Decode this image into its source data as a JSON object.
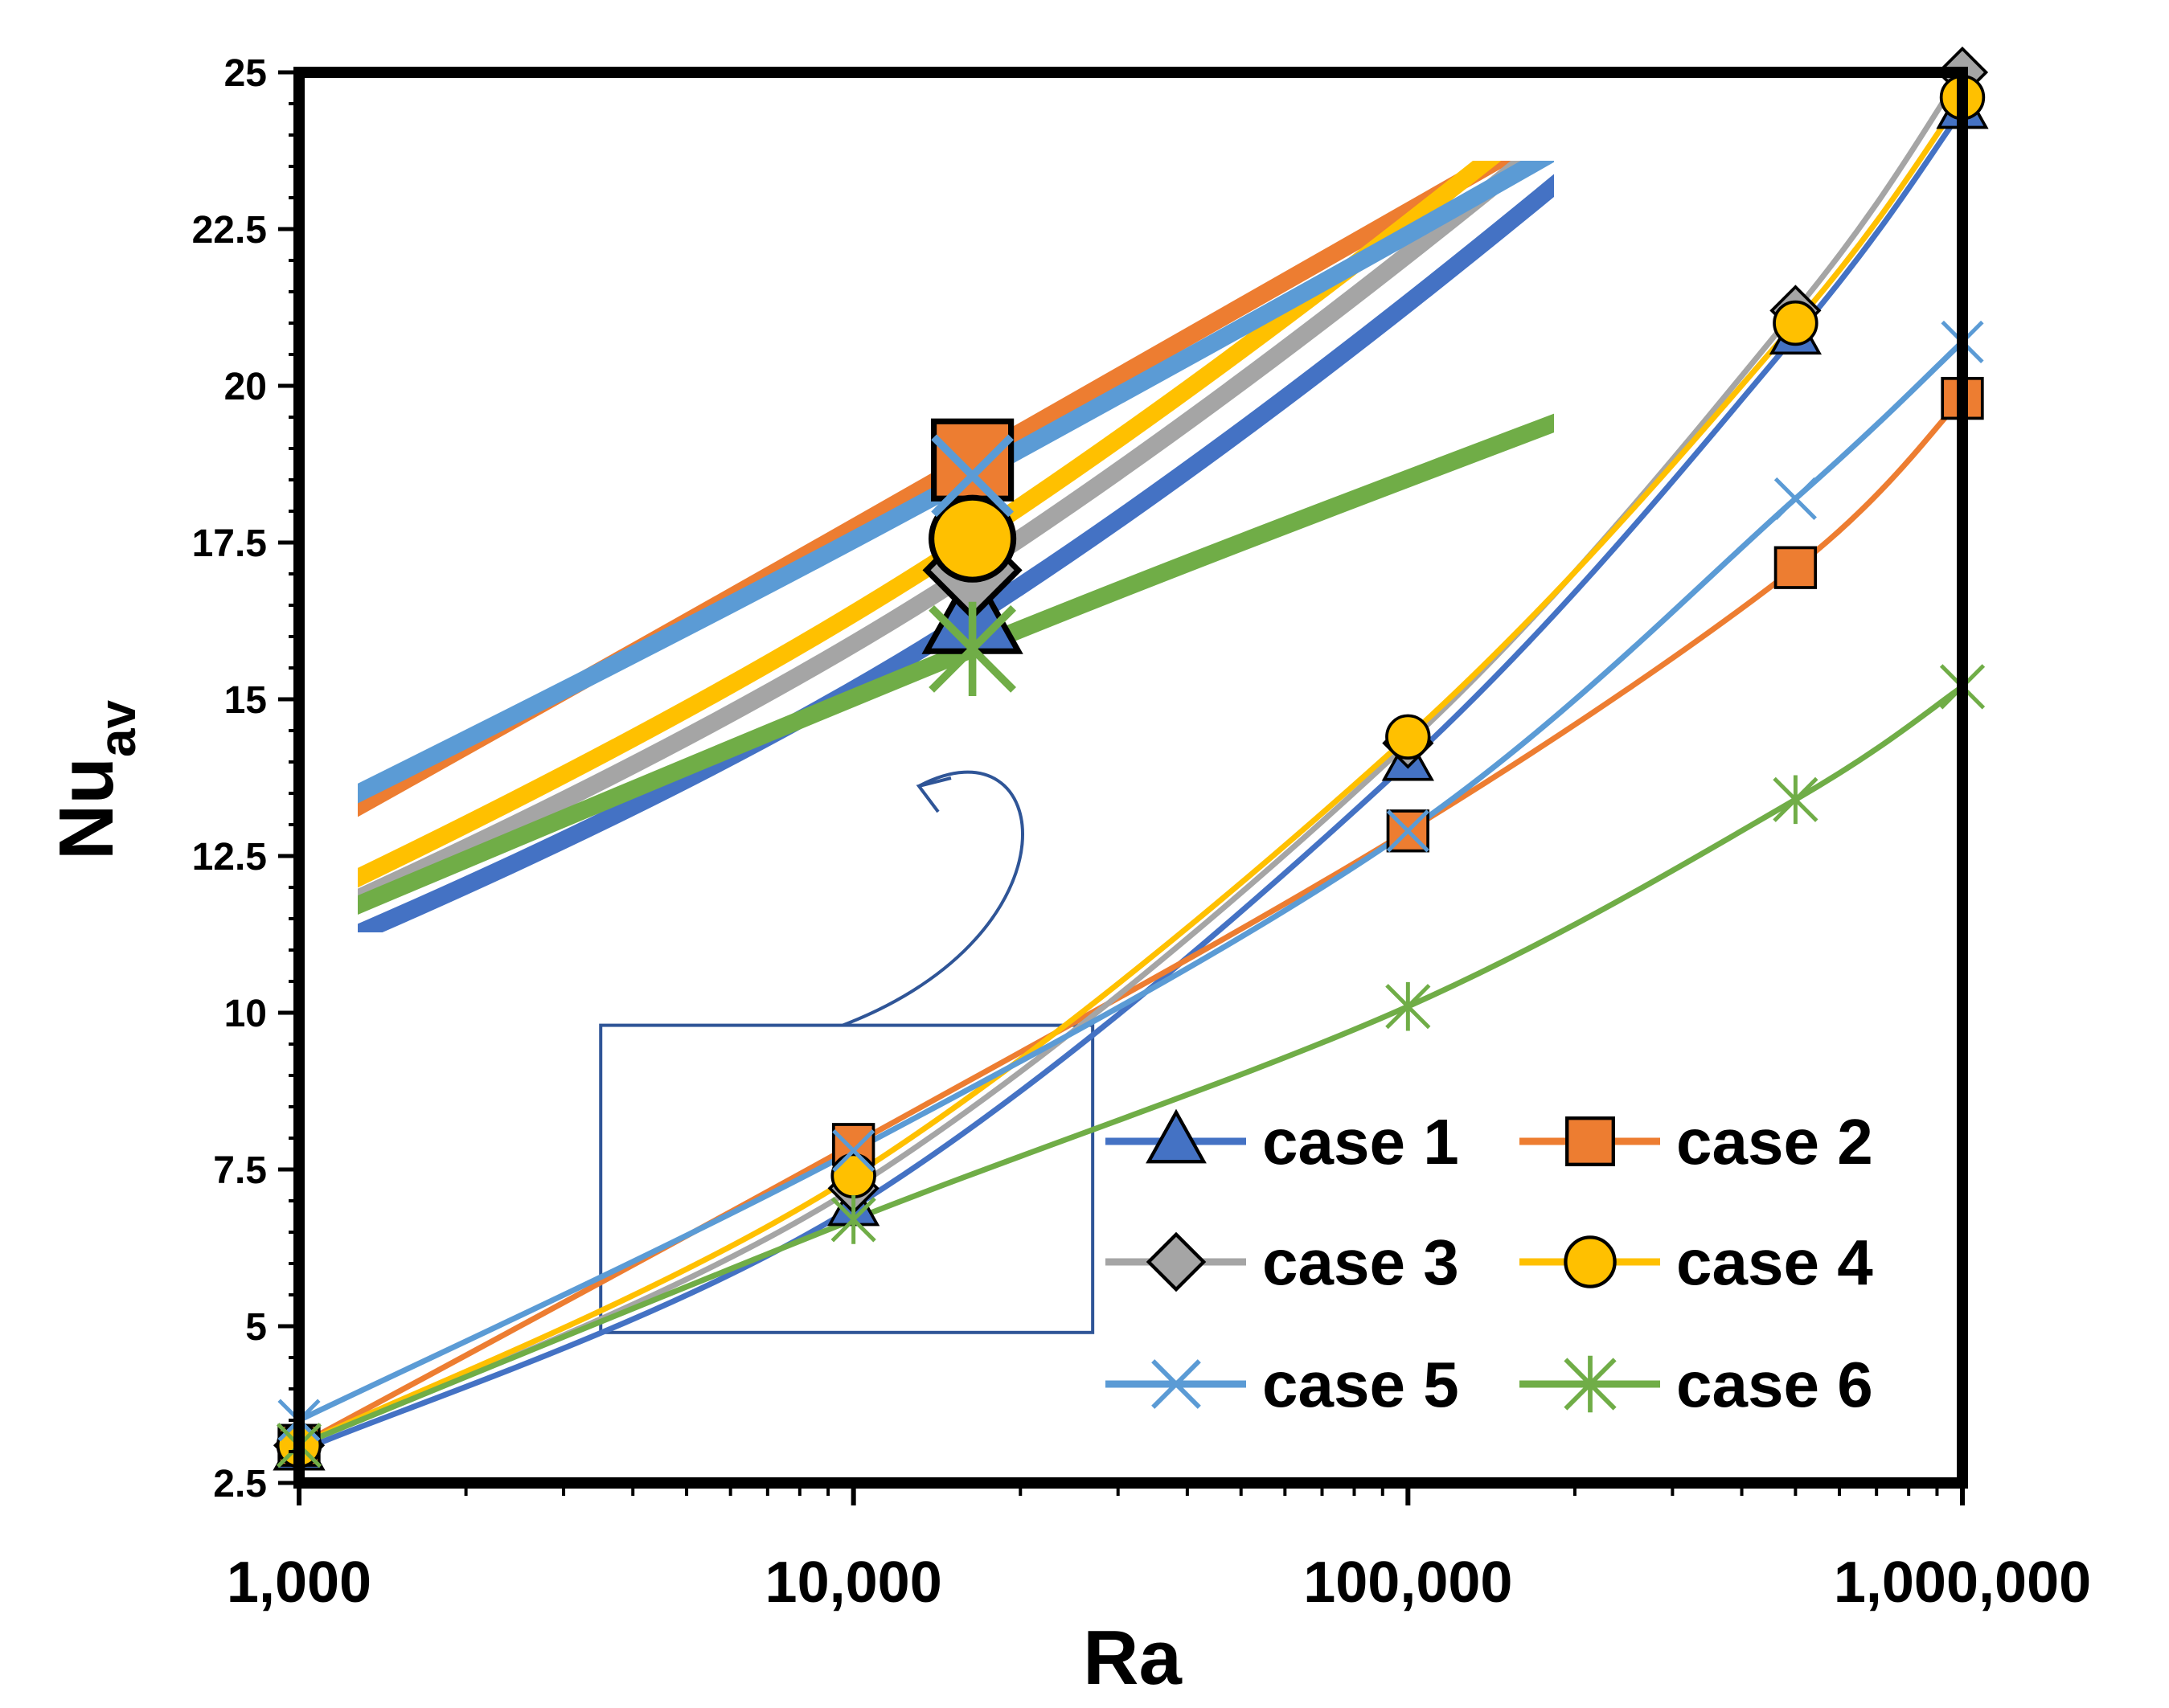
{
  "chart_data": {
    "type": "line",
    "xlabel": "Ra",
    "ylabel_main": "Nu",
    "ylabel_sub": "av",
    "x_scale": "log",
    "xlim": [
      1000,
      1000000
    ],
    "ylim": [
      2.5,
      25
    ],
    "x_ticks": [
      1000,
      10000,
      100000,
      1000000
    ],
    "x_tick_labels": [
      "1,000",
      "10,000",
      "100,000",
      "1,000,000"
    ],
    "y_ticks": [
      2.5,
      5,
      7.5,
      10,
      12.5,
      15,
      17.5,
      20,
      22.5,
      25
    ],
    "y_tick_labels": [
      "2.5",
      "5",
      "7.5",
      "10",
      "12.5",
      "15",
      "17.5",
      "20",
      "22.5",
      "25"
    ],
    "grid": false,
    "legend_position": "bottom-right",
    "x": [
      1000,
      10000,
      100000,
      500000,
      1000000
    ],
    "series": [
      {
        "name": "case 1",
        "marker": "triangle",
        "color": "#4472C4",
        "values": [
          3.0,
          6.9,
          14.0,
          20.8,
          24.4
        ]
      },
      {
        "name": "case 2",
        "marker": "square",
        "color": "#ED7D31",
        "values": [
          3.1,
          7.9,
          12.9,
          17.1,
          19.8
        ]
      },
      {
        "name": "case 3",
        "marker": "diamond",
        "color": "#A5A5A5",
        "values": [
          3.1,
          7.2,
          14.3,
          21.2,
          25.0
        ]
      },
      {
        "name": "case 4",
        "marker": "circle",
        "color": "#FFC000",
        "values": [
          3.1,
          7.4,
          14.4,
          21.0,
          24.6
        ]
      },
      {
        "name": "case 5",
        "marker": "x",
        "color": "#5B9BD5",
        "values": [
          3.5,
          7.8,
          12.9,
          18.2,
          20.7
        ]
      },
      {
        "name": "case 6",
        "marker": "star",
        "color": "#70AD47",
        "values": [
          3.1,
          6.7,
          10.1,
          13.4,
          15.2
        ]
      }
    ]
  }
}
